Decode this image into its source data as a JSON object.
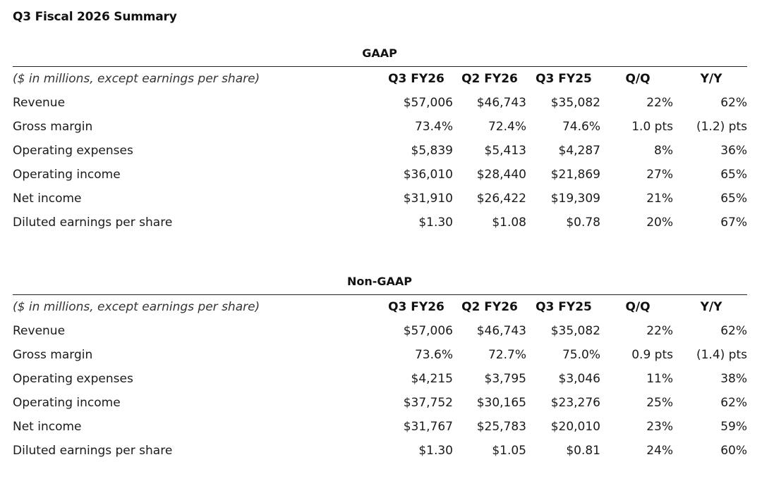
{
  "page_title": "Q3 Fiscal 2026 Summary",
  "tables": [
    {
      "title": "GAAP",
      "header": {
        "label": "($ in millions, except earnings per share)",
        "columns": [
          "Q3 FY26",
          "Q2 FY26",
          "Q3 FY25",
          "Q/Q",
          "Y/Y"
        ]
      },
      "rows": [
        {
          "label": "Revenue",
          "values": [
            "$57,006",
            "$46,743",
            "$35,082",
            "22%",
            "62%"
          ]
        },
        {
          "label": "Gross margin",
          "values": [
            "73.4%",
            "72.4%",
            "74.6%",
            "1.0 pts",
            "(1.2) pts"
          ]
        },
        {
          "label": "Operating expenses",
          "values": [
            "$5,839",
            "$5,413",
            "$4,287",
            "8%",
            "36%"
          ]
        },
        {
          "label": "Operating income",
          "values": [
            "$36,010",
            "$28,440",
            "$21,869",
            "27%",
            "65%"
          ]
        },
        {
          "label": "Net income",
          "values": [
            "$31,910",
            "$26,422",
            "$19,309",
            "21%",
            "65%"
          ]
        },
        {
          "label": "Diluted earnings per share",
          "values": [
            "$1.30",
            "$1.08",
            "$0.78",
            "20%",
            "67%"
          ]
        }
      ]
    },
    {
      "title": "Non-GAAP",
      "header": {
        "label": "($ in millions, except earnings per share)",
        "columns": [
          "Q3 FY26",
          "Q2 FY26",
          "Q3 FY25",
          "Q/Q",
          "Y/Y"
        ]
      },
      "rows": [
        {
          "label": "Revenue",
          "values": [
            "$57,006",
            "$46,743",
            "$35,082",
            "22%",
            "62%"
          ]
        },
        {
          "label": "Gross margin",
          "values": [
            "73.6%",
            "72.7%",
            "75.0%",
            "0.9 pts",
            "(1.4) pts"
          ]
        },
        {
          "label": "Operating expenses",
          "values": [
            "$4,215",
            "$3,795",
            "$3,046",
            "11%",
            "38%"
          ]
        },
        {
          "label": "Operating income",
          "values": [
            "$37,752",
            "$30,165",
            "$23,276",
            "25%",
            "62%"
          ]
        },
        {
          "label": "Net income",
          "values": [
            "$31,767",
            "$25,783",
            "$20,010",
            "23%",
            "59%"
          ]
        },
        {
          "label": "Diluted earnings per share",
          "values": [
            "$1.30",
            "$1.05",
            "$0.81",
            "24%",
            "60%"
          ]
        }
      ]
    }
  ]
}
